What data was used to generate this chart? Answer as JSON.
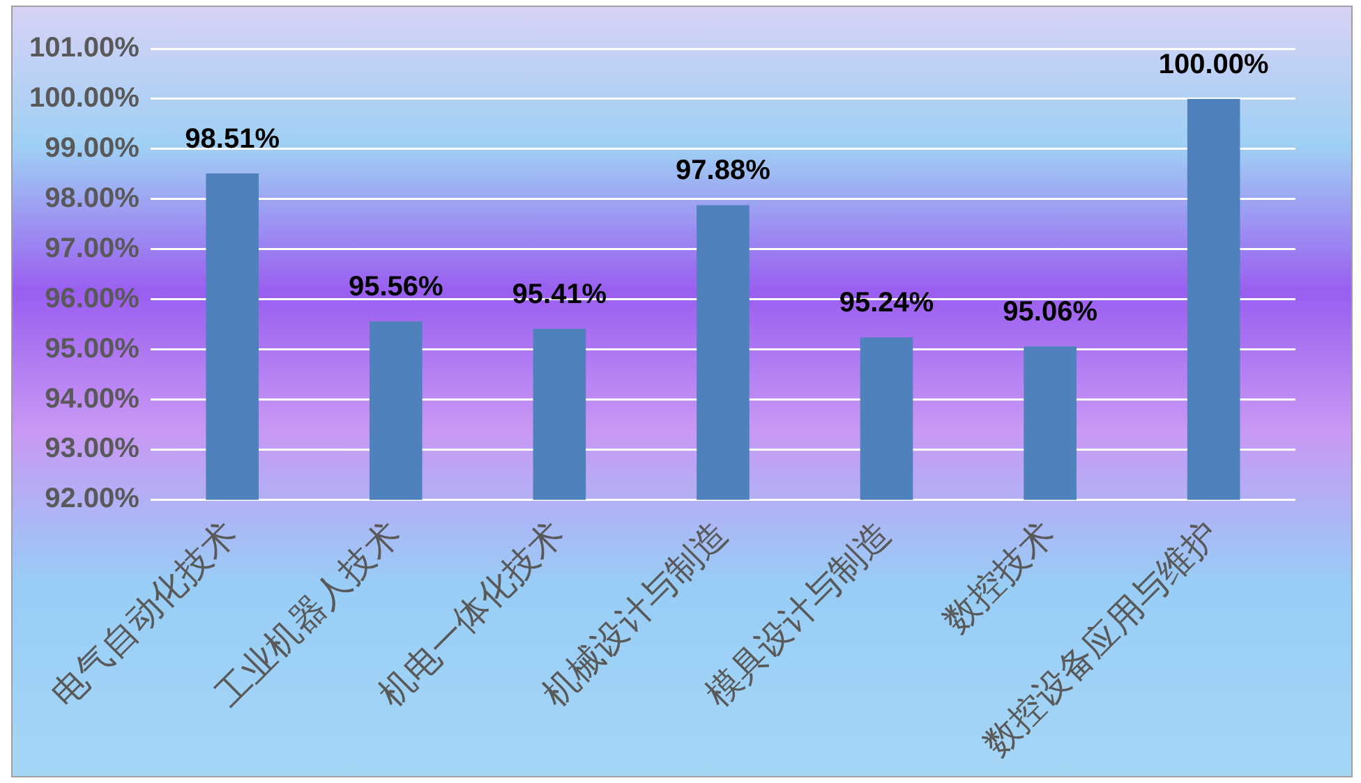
{
  "chart_data": {
    "type": "bar",
    "categories": [
      "电气自动化技术",
      "工业机器人技术",
      "机电一体化技术",
      "机械设计与制造",
      "模具设计与制造",
      "数控技术",
      "数控设备应用与维护"
    ],
    "values": [
      98.51,
      95.56,
      95.41,
      97.88,
      95.24,
      95.06,
      100.0
    ],
    "value_labels": [
      "98.51%",
      "95.56%",
      "95.41%",
      "97.88%",
      "95.24%",
      "95.06%",
      "100.00%"
    ],
    "color": "#4f81bd",
    "ylim": [
      92,
      101
    ],
    "yticks": [
      {
        "value": 92,
        "label": "92.00%"
      },
      {
        "value": 93,
        "label": "93.00%"
      },
      {
        "value": 94,
        "label": "94.00%"
      },
      {
        "value": 95,
        "label": "95.00%"
      },
      {
        "value": 96,
        "label": "96.00%"
      },
      {
        "value": 97,
        "label": "97.00%"
      },
      {
        "value": 98,
        "label": "98.00%"
      },
      {
        "value": 99,
        "label": "99.00%"
      },
      {
        "value": 100,
        "label": "100.00%"
      },
      {
        "value": 101,
        "label": "101.00%"
      }
    ],
    "grid": "y",
    "legend": false
  }
}
